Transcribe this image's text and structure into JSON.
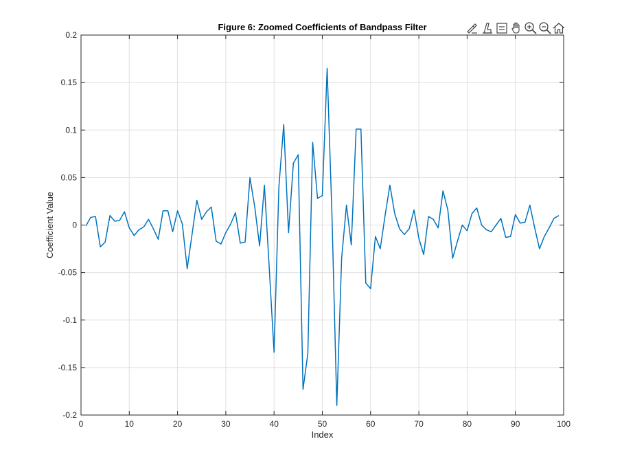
{
  "toolbar": {
    "icons": [
      "brush-icon",
      "datatip-icon",
      "legend-toggle-icon",
      "pan-hand-icon",
      "zoom-in-icon",
      "zoom-out-icon",
      "home-restore-icon"
    ]
  },
  "colors": {
    "line": "#0072BD",
    "grid": "#DFDFDF",
    "axis": "#262626",
    "icon": "#404040"
  },
  "chart_data": {
    "type": "line",
    "title": "Figure 6: Zoomed Coefficients of Bandpass Filter",
    "xlabel": "Index",
    "ylabel": "Coefficient Value",
    "xlim": [
      0,
      100
    ],
    "ylim": [
      -0.2,
      0.2
    ],
    "xticks": [
      0,
      10,
      20,
      30,
      40,
      50,
      60,
      70,
      80,
      90,
      100
    ],
    "xtick_labels": [
      "0",
      "10",
      "20",
      "30",
      "40",
      "50",
      "60",
      "70",
      "80",
      "90",
      "100"
    ],
    "yticks": [
      0.2,
      0.15,
      0.1,
      0.05,
      0,
      -0.05,
      -0.1,
      -0.15,
      -0.2
    ],
    "ytick_labels": [
      "0.2",
      "0.15",
      "0.1",
      "0.05",
      "0",
      "-0.05",
      "-0.1",
      "-0.15",
      "-0.2"
    ],
    "grid": true,
    "series": [
      {
        "x": [
          1,
          2,
          3,
          4,
          5,
          6,
          7,
          8,
          9,
          10,
          11,
          12,
          13,
          14,
          15,
          16,
          17,
          18,
          19,
          20,
          21,
          22,
          23,
          24,
          25,
          26,
          27,
          28,
          29,
          30,
          31,
          32,
          33,
          34,
          35,
          36,
          37,
          38,
          39,
          40,
          41,
          42,
          43,
          44,
          45,
          46,
          47,
          48,
          49,
          50,
          51,
          52,
          53,
          54,
          55,
          56,
          57,
          58,
          59,
          60,
          61,
          62,
          63,
          64,
          65,
          66,
          67,
          68,
          69,
          70,
          71,
          72,
          73,
          74,
          75,
          76,
          77,
          78,
          79,
          80,
          81,
          82,
          83,
          84,
          85,
          86,
          87,
          88,
          89,
          90,
          91,
          92,
          93,
          94,
          95,
          96,
          97,
          98,
          99
        ],
        "y": [
          -0.001,
          0.008,
          0.009,
          -0.023,
          -0.018,
          0.01,
          0.004,
          0.005,
          0.014,
          -0.003,
          -0.011,
          -0.005,
          -0.002,
          0.006,
          -0.004,
          -0.015,
          0.015,
          0.015,
          -0.007,
          0.015,
          0.001,
          -0.046,
          -0.01,
          0.026,
          0.006,
          0.014,
          0.019,
          -0.017,
          -0.02,
          -0.008,
          0.001,
          0.013,
          -0.019,
          -0.018,
          0.05,
          0.019,
          -0.022,
          0.042,
          -0.045,
          -0.134,
          0.04,
          0.106,
          -0.008,
          0.065,
          0.074,
          -0.173,
          -0.135,
          0.087,
          0.028,
          0.031,
          0.165,
          0.01,
          -0.19,
          -0.035,
          0.021,
          -0.021,
          0.101,
          0.101,
          -0.061,
          -0.067,
          -0.012,
          -0.025,
          0.01,
          0.042,
          0.012,
          -0.004,
          -0.01,
          -0.004,
          0.016,
          -0.014,
          -0.031,
          0.009,
          0.006,
          -0.003,
          0.036,
          0.016,
          -0.035,
          -0.017,
          0.0,
          -0.006,
          0.012,
          0.018,
          0.0,
          -0.005,
          -0.007,
          0.0,
          0.007,
          -0.013,
          -0.012,
          0.011,
          0.002,
          0.003,
          0.021,
          -0.003,
          -0.025,
          -0.012,
          -0.003,
          0.007,
          0.01
        ]
      }
    ]
  }
}
